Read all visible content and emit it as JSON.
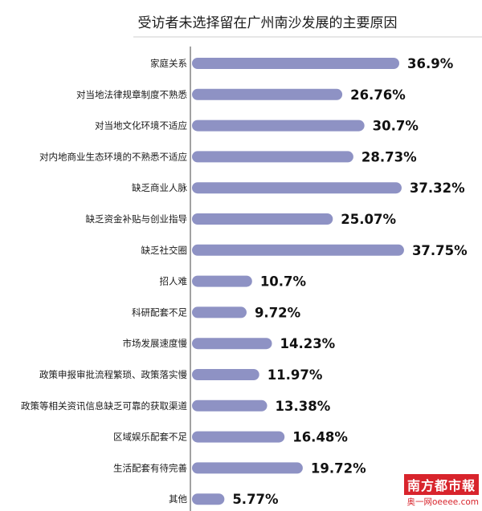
{
  "chart_data": {
    "type": "bar",
    "orientation": "horizontal",
    "title": "受访者未选择留在广州南沙发展的主要原因",
    "categories": [
      "家庭关系",
      "对当地法律规章制度不熟悉",
      "对当地文化环境不适应",
      "对内地商业生态环境的不熟悉不适应",
      "缺乏商业人脉",
      "缺乏资金补贴与创业指导",
      "缺乏社交圈",
      "招人难",
      "科研配套不足",
      "市场发展速度慢",
      "政策申报审批流程繁琐、政策落实慢",
      "政策等相关资讯信息缺乏可靠的获取渠道",
      "区域娱乐配套不足",
      "生活配套有待完善",
      "其他"
    ],
    "values": [
      36.9,
      26.76,
      30.7,
      28.73,
      37.32,
      25.07,
      37.75,
      10.7,
      9.72,
      14.23,
      11.97,
      13.38,
      16.48,
      19.72,
      5.77
    ],
    "value_labels": [
      "36.9%",
      "26.76%",
      "30.7%",
      "28.73%",
      "37.32%",
      "25.07%",
      "37.75%",
      "10.7%",
      "9.72%",
      "14.23%",
      "11.97%",
      "13.38%",
      "16.48%",
      "19.72%",
      "5.77%"
    ],
    "unit": "%",
    "xlim": [
      0,
      40
    ],
    "bar_color": "#8e92c4",
    "axis_color": "#444444",
    "grid": false,
    "legend": "none"
  },
  "watermark": {
    "logo": "南方都市報",
    "site": "奥一网oeeee.com",
    "color": "#d8242c"
  }
}
